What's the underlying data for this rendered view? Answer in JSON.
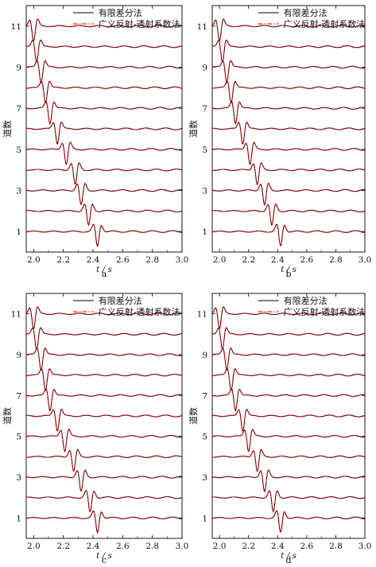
{
  "chart_data": [
    {
      "type": "line",
      "panel_label": "a",
      "xlabel": "t / s",
      "ylabel": "道数",
      "xlim": [
        1.95,
        3.0
      ],
      "ylim": [
        0,
        12
      ],
      "x_ticks": [
        "2.0",
        "2.2",
        "2.4",
        "2.6",
        "2.8",
        "3.0"
      ],
      "y_ticks": [
        "1",
        "3",
        "5",
        "7",
        "9",
        "11"
      ],
      "legend": {
        "position": "top-right",
        "entries": [
          "有限差分法",
          "广义反射-透射系数法"
        ]
      },
      "series": [
        {
          "name": "有限差分法",
          "color": "#000000",
          "style": "solid"
        },
        {
          "name": "广义反射-透射系数法",
          "color": "#e00000",
          "style": "dash-dot"
        }
      ],
      "traces": [
        {
          "trace": 1,
          "arrival_s": 2.43
        },
        {
          "trace": 2,
          "arrival_s": 2.37
        },
        {
          "trace": 3,
          "arrival_s": 2.32
        },
        {
          "trace": 4,
          "arrival_s": 2.28
        },
        {
          "trace": 5,
          "arrival_s": 2.22
        },
        {
          "trace": 6,
          "arrival_s": 2.16
        },
        {
          "trace": 7,
          "arrival_s": 2.11
        },
        {
          "trace": 8,
          "arrival_s": 2.08
        },
        {
          "trace": 9,
          "arrival_s": 2.05
        },
        {
          "trace": 10,
          "arrival_s": 2.02
        },
        {
          "trace": 11,
          "arrival_s": 2.0
        }
      ]
    },
    {
      "type": "line",
      "panel_label": "b",
      "xlabel": "t / s",
      "ylabel": "道数",
      "xlim": [
        1.95,
        3.0
      ],
      "ylim": [
        0,
        12
      ],
      "x_ticks": [
        "2.0",
        "2.2",
        "2.4",
        "2.6",
        "2.8",
        "3.0"
      ],
      "y_ticks": [
        "1",
        "3",
        "5",
        "7",
        "9",
        "11"
      ],
      "legend": {
        "position": "top-right",
        "entries": [
          "有限差分法",
          "广义反射-透射系数法"
        ]
      },
      "series": [
        {
          "name": "有限差分法",
          "color": "#000000",
          "style": "solid"
        },
        {
          "name": "广义反射-透射系数法",
          "color": "#e00000",
          "style": "dash-dot"
        }
      ],
      "traces": [
        {
          "trace": 1,
          "arrival_s": 2.42
        },
        {
          "trace": 2,
          "arrival_s": 2.36
        },
        {
          "trace": 3,
          "arrival_s": 2.31
        },
        {
          "trace": 4,
          "arrival_s": 2.26
        },
        {
          "trace": 5,
          "arrival_s": 2.21
        },
        {
          "trace": 6,
          "arrival_s": 2.16
        },
        {
          "trace": 7,
          "arrival_s": 2.11
        },
        {
          "trace": 8,
          "arrival_s": 2.08
        },
        {
          "trace": 9,
          "arrival_s": 2.05
        },
        {
          "trace": 10,
          "arrival_s": 2.02
        },
        {
          "trace": 11,
          "arrival_s": 2.0
        }
      ]
    },
    {
      "type": "line",
      "panel_label": "c",
      "xlabel": "t / s",
      "ylabel": "道数",
      "xlim": [
        1.95,
        3.0
      ],
      "ylim": [
        0,
        12
      ],
      "x_ticks": [
        "2.0",
        "2.2",
        "2.4",
        "2.6",
        "2.8",
        "3.0"
      ],
      "y_ticks": [
        "1",
        "3",
        "5",
        "7",
        "9",
        "11"
      ],
      "legend": {
        "position": "top-right",
        "entries": [
          "有限差分法",
          "广义反射-透射系数法"
        ]
      },
      "series": [
        {
          "name": "有限差分法",
          "color": "#000000",
          "style": "solid"
        },
        {
          "name": "广义反射-透射系数法",
          "color": "#e00000",
          "style": "dash-dot"
        }
      ],
      "traces": [
        {
          "trace": 1,
          "arrival_s": 2.43
        },
        {
          "trace": 2,
          "arrival_s": 2.38
        },
        {
          "trace": 3,
          "arrival_s": 2.32
        },
        {
          "trace": 4,
          "arrival_s": 2.27
        },
        {
          "trace": 5,
          "arrival_s": 2.21
        },
        {
          "trace": 6,
          "arrival_s": 2.16
        },
        {
          "trace": 7,
          "arrival_s": 2.11
        },
        {
          "trace": 8,
          "arrival_s": 2.08
        },
        {
          "trace": 9,
          "arrival_s": 2.05
        },
        {
          "trace": 10,
          "arrival_s": 2.02
        },
        {
          "trace": 11,
          "arrival_s": 2.0
        }
      ]
    },
    {
      "type": "line",
      "panel_label": "d",
      "xlabel": "t / s",
      "ylabel": "道数",
      "xlim": [
        1.95,
        3.0
      ],
      "ylim": [
        0,
        12
      ],
      "x_ticks": [
        "2.0",
        "2.2",
        "2.4",
        "2.6",
        "2.8",
        "3.0"
      ],
      "y_ticks": [
        "1",
        "3",
        "5",
        "7",
        "9",
        "11"
      ],
      "legend": {
        "position": "top-right",
        "entries": [
          "有限差分法",
          "广义反射-透射系数法"
        ]
      },
      "series": [
        {
          "name": "有限差分法",
          "color": "#000000",
          "style": "solid"
        },
        {
          "name": "广义反射-透射系数法",
          "color": "#e00000",
          "style": "dash-dot"
        }
      ],
      "traces": [
        {
          "trace": 1,
          "arrival_s": 2.42
        },
        {
          "trace": 2,
          "arrival_s": 2.37
        },
        {
          "trace": 3,
          "arrival_s": 2.31
        },
        {
          "trace": 4,
          "arrival_s": 2.26
        },
        {
          "trace": 5,
          "arrival_s": 2.2
        },
        {
          "trace": 6,
          "arrival_s": 2.16
        },
        {
          "trace": 7,
          "arrival_s": 2.11
        },
        {
          "trace": 8,
          "arrival_s": 2.08
        },
        {
          "trace": 9,
          "arrival_s": 2.05
        },
        {
          "trace": 10,
          "arrival_s": 2.02
        },
        {
          "trace": 11,
          "arrival_s": 2.0
        }
      ]
    }
  ]
}
